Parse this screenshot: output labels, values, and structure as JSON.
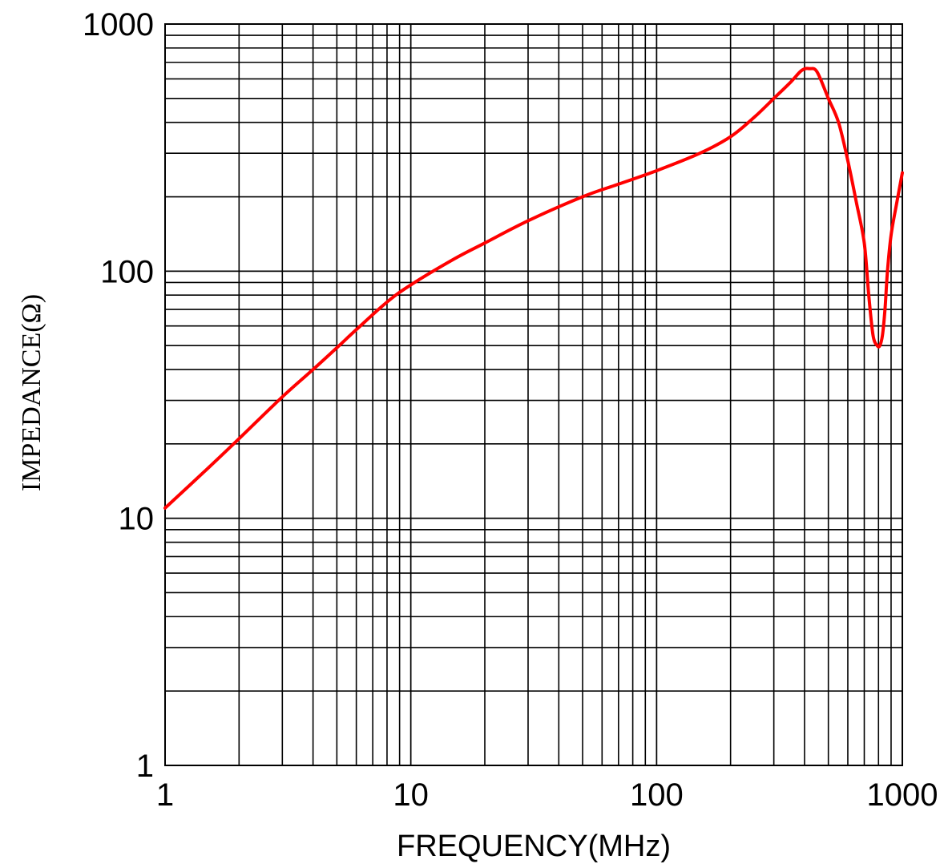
{
  "chart_data": {
    "type": "line",
    "title": "",
    "xlabel": "FREQUENCY(MHz)",
    "ylabel": "IMPEDANCE(Ω)",
    "x_scale": "log",
    "y_scale": "log",
    "xlim": [
      1,
      1000
    ],
    "ylim": [
      1,
      1000
    ],
    "x_ticks": [
      "1",
      "10",
      "100",
      "1000"
    ],
    "y_ticks": [
      "1",
      "10",
      "100",
      "1000"
    ],
    "grid": true,
    "legend": "none",
    "series": [
      {
        "color": "#ff0000",
        "x": [
          1,
          1.5,
          2,
          3,
          4,
          5,
          6,
          8,
          10,
          15,
          20,
          30,
          50,
          70,
          100,
          150,
          200,
          250,
          300,
          350,
          390,
          420,
          450,
          500,
          550,
          600,
          650,
          700,
          730,
          760,
          790,
          810,
          830,
          850,
          870,
          900,
          950,
          1000
        ],
        "y": [
          11,
          16,
          21,
          31,
          40,
          49,
          58,
          75,
          88,
          112,
          130,
          160,
          200,
          225,
          255,
          300,
          350,
          420,
          500,
          580,
          650,
          660,
          640,
          500,
          400,
          280,
          190,
          130,
          80,
          55,
          50,
          50,
          55,
          70,
          100,
          140,
          190,
          250
        ]
      }
    ]
  }
}
